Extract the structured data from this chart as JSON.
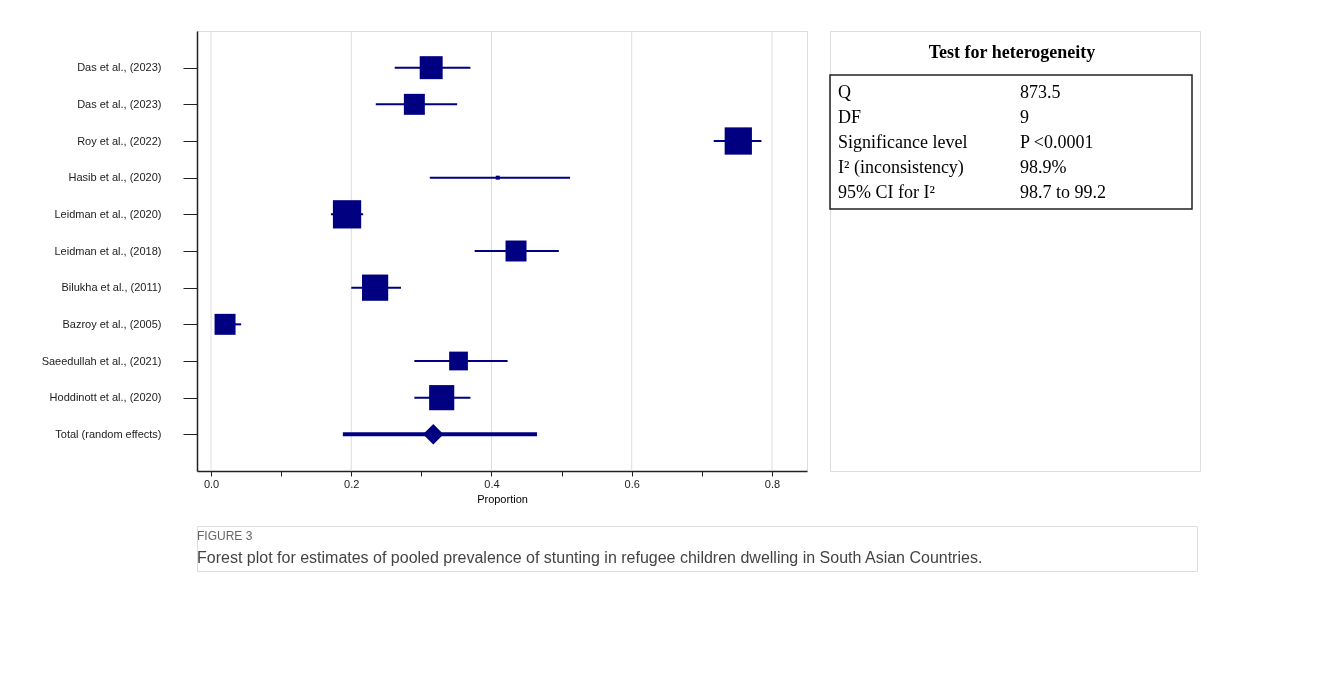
{
  "chart_data": {
    "type": "bubble",
    "orientation": "horizontal",
    "categories": [
      "Das et al., (2023)",
      "Das et al., (2023)",
      "Roy et al., (2022)",
      "Hasib et al., (2020)",
      "Leidman et al., (2020)",
      "Leidman et al., (2018)",
      "Bilukha et al., (2011)",
      "Bazroy et al., (2005)",
      "Saeedullah et al., (2021)",
      "Hoddinott et al., (2020)",
      "Total (random effects)"
    ],
    "series": [
      {
        "type": "bubble",
        "marker": "square",
        "color": "#000080",
        "values": [
          0.314,
          0.29,
          0.752,
          0.409,
          0.194,
          0.435,
          0.234,
          0.02,
          0.353,
          0.329,
          null
        ],
        "errors": [
          [
            0.262,
            0.37
          ],
          [
            0.235,
            0.351
          ],
          [
            0.717,
            0.785
          ],
          [
            0.312,
            0.512
          ],
          [
            0.171,
            0.217
          ],
          [
            0.376,
            0.496
          ],
          [
            0.2,
            0.271
          ],
          [
            0.008,
            0.043
          ],
          [
            0.29,
            0.423
          ],
          [
            0.29,
            0.37
          ],
          null
        ],
        "sizes": [
          0.66,
          0.55,
          0.93,
          0.02,
          1,
          0.55,
          0.86,
          0.55,
          0.44,
          0.79,
          null
        ]
      },
      {
        "type": "scatter",
        "marker": "diamond",
        "color": "#000080",
        "values": [
          null,
          null,
          null,
          null,
          null,
          null,
          null,
          null,
          null,
          null,
          0.317
        ],
        "errors": [
          null,
          null,
          null,
          null,
          null,
          null,
          null,
          null,
          null,
          null,
          [
            0.188,
            0.465
          ]
        ]
      }
    ],
    "xlabel": "Proportion",
    "xlim": [
      -0.02,
      0.85
    ],
    "xticks": [
      {
        "value": 0,
        "label": "0.0"
      },
      {
        "value": 0.1,
        "label": null
      },
      0.2,
      {
        "value": 0.3,
        "label": null
      },
      0.4,
      {
        "value": 0.5,
        "label": null
      },
      0.6,
      {
        "value": 0.7,
        "label": null
      },
      0.8
    ],
    "grid": "x",
    "annotations": [
      "Test for heterogeneity",
      "Q",
      "873.5",
      "DF",
      "9",
      "Significance  level",
      "P <0.0001",
      "I² (inconsistency)",
      "98.9%",
      "95% CI for I²",
      "98.7 to 99.2",
      "FIGURE 3",
      "Forest plot for estimates of pooled prevalence of stunting in refugee children dwelling in South Asian Countries."
    ]
  }
}
